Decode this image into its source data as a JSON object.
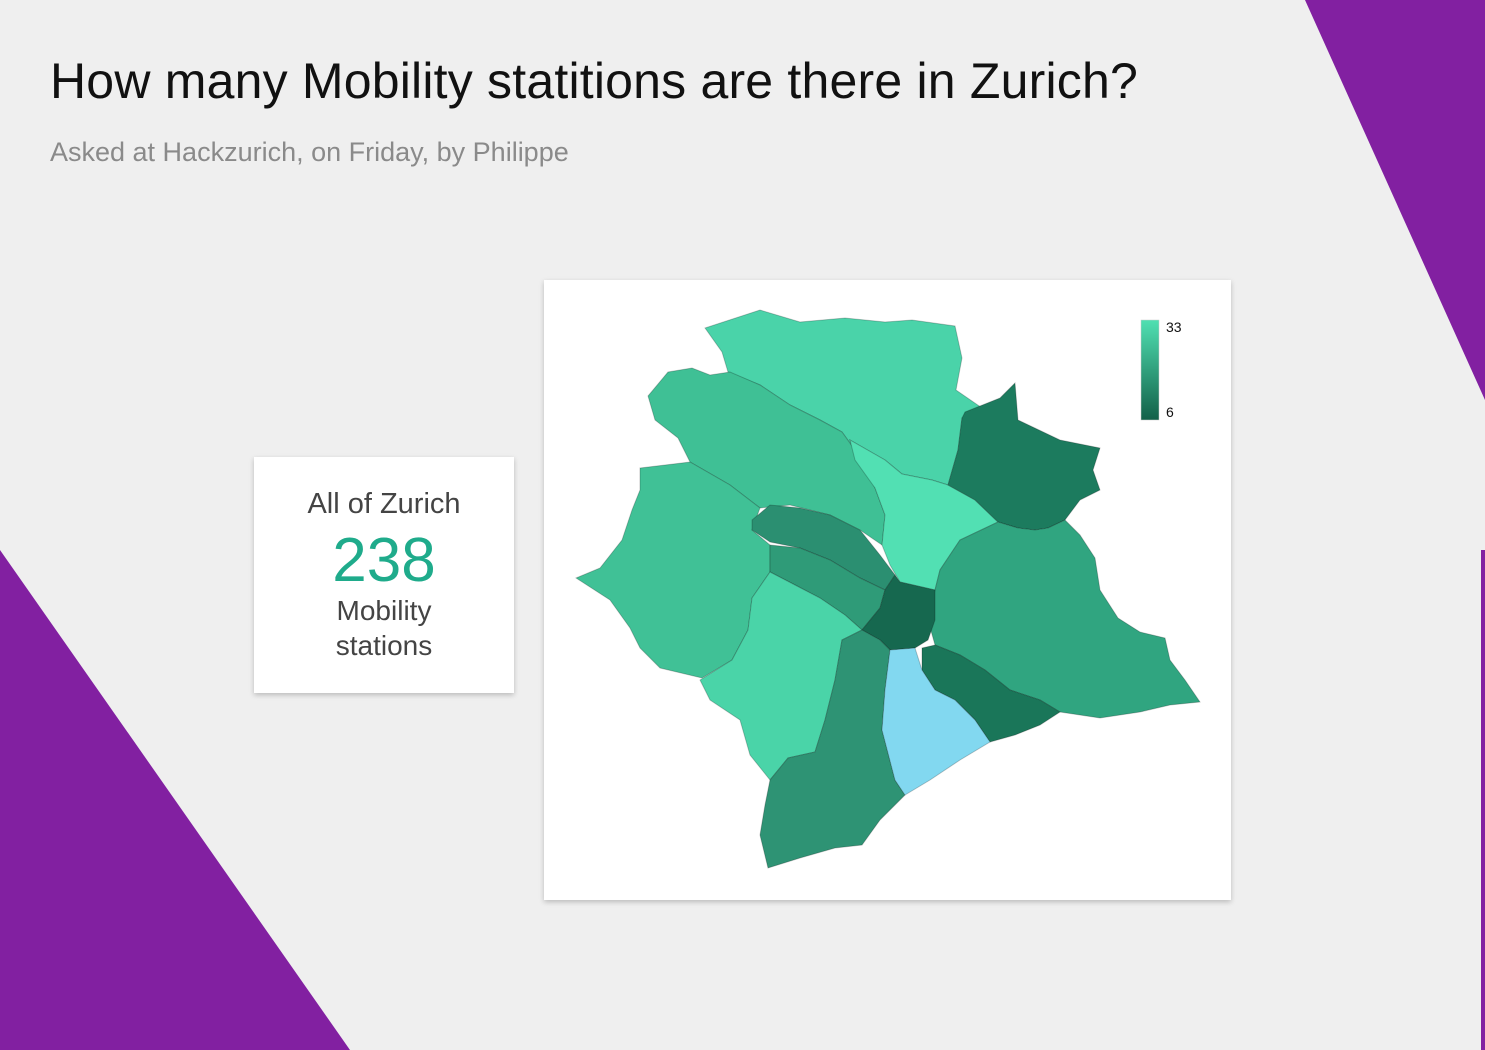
{
  "header": {
    "title": "How many Mobility statitions are there in Zurich?",
    "subtitle": "Asked at Hackzurich, on Friday, by Philippe"
  },
  "summary": {
    "label": "All of Zurich",
    "value": "238",
    "unit": "Mobility stations"
  },
  "colors": {
    "background": "#efefef",
    "accent_purple": "#8220a1",
    "stat_value": "#1fab8b",
    "scale_max": "#50e0b2",
    "scale_min": "#126048",
    "highlight": "#82d8f0"
  },
  "map": {
    "legend": {
      "max": "33",
      "min": "6"
    },
    "districts": [
      {
        "id": "north-top",
        "level": 0.72,
        "color": "#4ad3a9"
      },
      {
        "id": "north-west",
        "level": 0.58,
        "color": "#3fc095"
      },
      {
        "id": "west",
        "level": 0.6,
        "color": "#40c196"
      },
      {
        "id": "center-north",
        "level": 0.95,
        "color": "#52e0b3"
      },
      {
        "id": "north-east",
        "level": 0.18,
        "color": "#1c7b5e"
      },
      {
        "id": "east",
        "level": 0.42,
        "color": "#30a580"
      },
      {
        "id": "center-west-strip-a",
        "level": 0.3,
        "color": "#2b8f71"
      },
      {
        "id": "center-west-strip-b",
        "level": 0.4,
        "color": "#2f9b78"
      },
      {
        "id": "center-south-west",
        "level": 0.78,
        "color": "#4ad4a8"
      },
      {
        "id": "center",
        "level": 0.08,
        "color": "#16684f"
      },
      {
        "id": "south-east",
        "level": 0.15,
        "color": "#1a7659"
      },
      {
        "id": "south",
        "level": 0.35,
        "color": "#2e9374"
      },
      {
        "id": "lake",
        "level": null,
        "color": "#82d8f0"
      }
    ]
  }
}
